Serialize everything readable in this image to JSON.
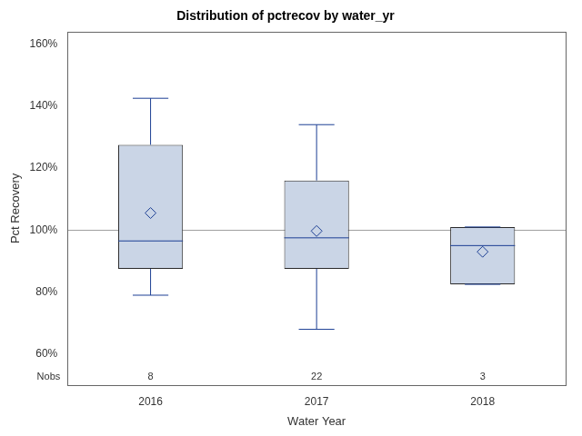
{
  "chart_data": {
    "type": "box",
    "title": "Distribution of pctrecov by water_yr",
    "x_label": "Water Year",
    "y_label": "Pct Recovery",
    "categories": [
      "2016",
      "2017",
      "2018"
    ],
    "boxes": [
      {
        "min": 79,
        "q1": 87.5,
        "median": 96.5,
        "q3": 127.5,
        "max": 142.5,
        "mean": 105.5
      },
      {
        "min": 68,
        "q1": 87.5,
        "median": 97.5,
        "q3": 116,
        "max": 134,
        "mean": 99.7
      },
      {
        "min": 82.5,
        "q1": 82.5,
        "median": 95,
        "q3": 101,
        "max": 101,
        "mean": 93
      }
    ],
    "nobs_label": "Nobs",
    "nobs": [
      8,
      22,
      3
    ],
    "reference_line": 100,
    "color": "#cad5e6",
    "ylim": [
      50,
      164
    ],
    "yticks": [
      {
        "value": 60,
        "label": "60%"
      },
      {
        "value": 80,
        "label": "80%"
      },
      {
        "value": 100,
        "label": "100%"
      },
      {
        "value": 120,
        "label": "120%"
      },
      {
        "value": 140,
        "label": "140%"
      },
      {
        "value": 160,
        "label": "160%"
      }
    ],
    "grid": false
  }
}
